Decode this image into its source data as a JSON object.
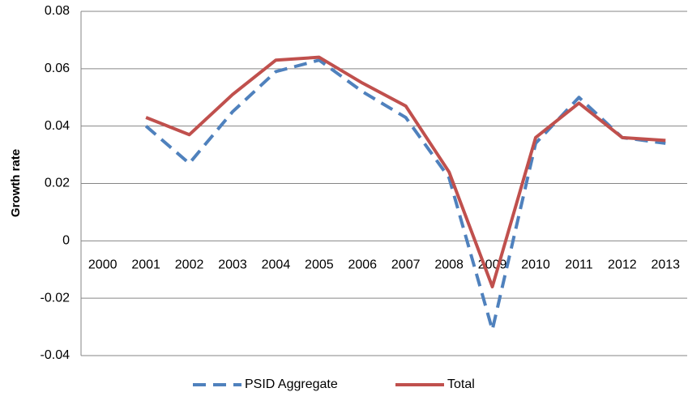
{
  "chart_data": {
    "type": "line",
    "y_label": "Growth rate",
    "categories": [
      "2000",
      "2001",
      "2002",
      "2003",
      "2004",
      "2005",
      "2006",
      "2007",
      "2008",
      "2009",
      "2010",
      "2011",
      "2012",
      "2013"
    ],
    "series": [
      {
        "name": "PSID Aggregate",
        "color": "#4f81bd",
        "dashed": true,
        "values": [
          null,
          0.04,
          0.027,
          0.045,
          0.059,
          0.063,
          0.052,
          0.043,
          0.022,
          -0.031,
          0.034,
          0.05,
          0.036,
          0.034
        ]
      },
      {
        "name": "Total",
        "color": "#c0504d",
        "dashed": false,
        "values": [
          null,
          0.043,
          0.037,
          0.051,
          0.063,
          0.064,
          0.055,
          0.047,
          0.024,
          -0.016,
          0.036,
          0.048,
          0.036,
          0.035
        ]
      }
    ],
    "ylim": [
      -0.04,
      0.08
    ],
    "yticks": [
      -0.04,
      -0.02,
      0,
      0.02,
      0.04,
      0.06,
      0.08
    ],
    "grid": true,
    "legend": "bottom"
  }
}
